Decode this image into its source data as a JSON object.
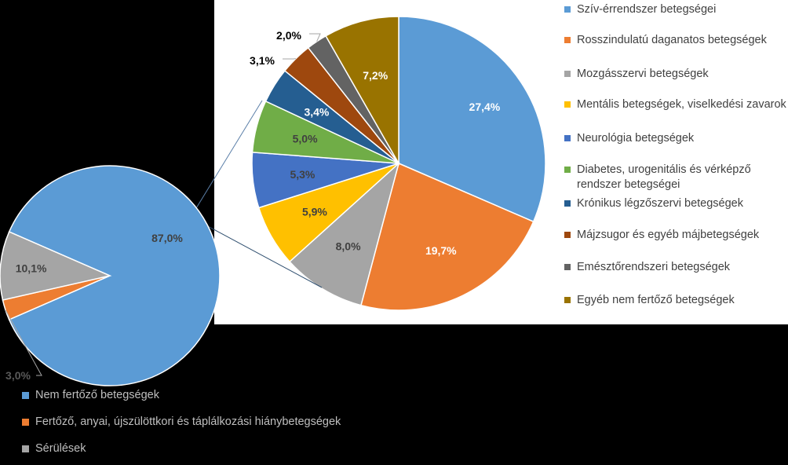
{
  "chart_data": [
    {
      "type": "pie",
      "categories": [
        "Nem fertőző betegségek",
        "Fertőző, anyai, újszülöttkori és táplálkozási hiánybetegségek",
        "Sérülések"
      ],
      "values": [
        87.0,
        3.0,
        10.1
      ],
      "labels": [
        "87,0%",
        "3,0%",
        "10,1%"
      ],
      "colors": [
        "#5b9bd5",
        "#ed7d31",
        "#a5a5a5"
      ],
      "legend_position": "bottom"
    },
    {
      "type": "pie",
      "categories": [
        "Szív-érrendszer betegségei",
        "Rosszindulatú daganatos betegségek",
        "Mozgásszervi betegségek",
        "Mentális betegségek, viselkedési zavarok",
        "Neurológia betegségek",
        "Diabetes, urogenitális és vérképző rendszer betegségei",
        "Krónikus légzőszervi betegségek",
        "Májzsugor és egyéb májbetegségek",
        "Emésztőrendszeri betegségek",
        "Egyéb nem fertőző betegségek"
      ],
      "values": [
        27.4,
        19.7,
        8.0,
        5.9,
        5.3,
        5.0,
        3.4,
        3.1,
        2.0,
        7.2
      ],
      "labels": [
        "27,4%",
        "19,7%",
        "8,0%",
        "5,9%",
        "5,3%",
        "5,0%",
        "3,4%",
        "3,1%",
        "2,0%",
        "7,2%"
      ],
      "colors": [
        "#5b9bd5",
        "#ed7d31",
        "#a5a5a5",
        "#ffc000",
        "#4472c4",
        "#70ad47",
        "#255e91",
        "#9e480e",
        "#636363",
        "#997300"
      ],
      "legend_position": "right"
    }
  ]
}
